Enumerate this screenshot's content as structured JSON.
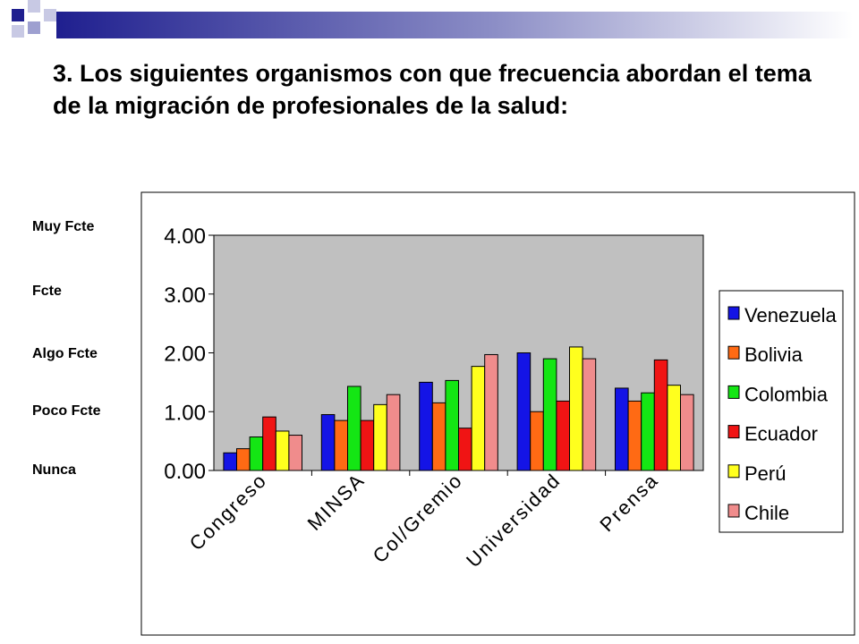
{
  "slide": {
    "title": "3. Los siguientes organismos con que frecuencia abordan el tema de la migración de profesionales de la salud:",
    "scale_labels": [
      "Muy Fcte",
      "Fcte",
      "Algo Fcte",
      "Poco Fcte",
      "Nunca"
    ]
  },
  "colors": {
    "accent_dark": "#1f1f8f",
    "accent_light": "#9ea0d0",
    "plot_bg": "#c0c0c0"
  },
  "chart_data": {
    "type": "bar",
    "categories": [
      "Congreso",
      "MINSA",
      "Col/Gremio",
      "Universidad",
      "Prensa"
    ],
    "ylim": [
      0,
      4
    ],
    "yticks": [
      "0.00",
      "1.00",
      "2.00",
      "3.00",
      "4.00"
    ],
    "grid": false,
    "legend": "right",
    "series": [
      {
        "name": "Venezuela",
        "color": "#1414e6",
        "values": [
          0.3,
          0.95,
          1.5,
          2.0,
          1.4
        ]
      },
      {
        "name": "Bolivia",
        "color": "#ff6a14",
        "values": [
          0.37,
          0.85,
          1.15,
          1.0,
          1.18
        ]
      },
      {
        "name": "Colombia",
        "color": "#14e614",
        "values": [
          0.57,
          1.43,
          1.53,
          1.9,
          1.32
        ]
      },
      {
        "name": "Ecuador",
        "color": "#f01414",
        "values": [
          0.91,
          0.85,
          0.72,
          1.18,
          1.88
        ]
      },
      {
        "name": "Perú",
        "color": "#ffff1e",
        "values": [
          0.67,
          1.12,
          1.77,
          2.1,
          1.45
        ]
      },
      {
        "name": "Chile",
        "color": "#f08c8c",
        "values": [
          0.6,
          1.29,
          1.97,
          1.9,
          1.29
        ]
      }
    ]
  }
}
